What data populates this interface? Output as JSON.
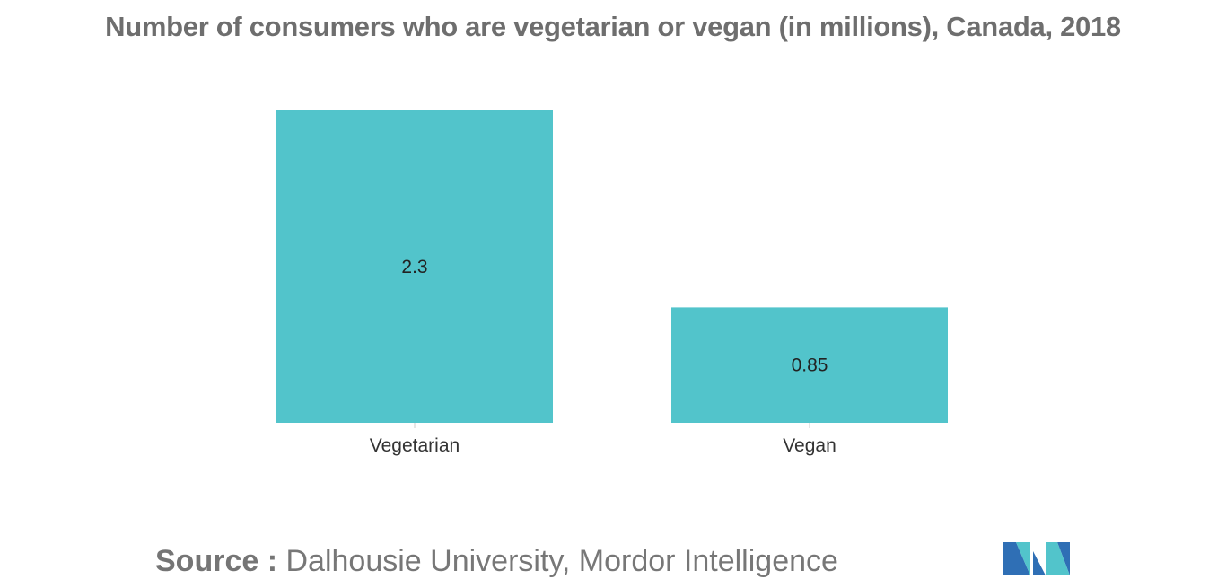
{
  "chart_data": {
    "type": "bar",
    "title": "Number of consumers who are vegetarian or vegan (in millions), Canada, 2018",
    "categories": [
      "Vegetarian",
      "Vegan"
    ],
    "values": [
      2.3,
      0.85
    ],
    "data_labels": [
      "2.3",
      "0.85"
    ],
    "xlabel": "",
    "ylabel": "",
    "ylim": [
      0,
      2.3
    ],
    "grid": false,
    "legend": "none",
    "bar_color": "#52c4cb"
  },
  "footer": {
    "source_label": "Source :",
    "source_text": "Dalhousie University, Mordor Intelligence"
  },
  "logo": {
    "icon": "mordor-intelligence-logo",
    "colors": [
      "#2b6cb0",
      "#52c4cb"
    ]
  }
}
